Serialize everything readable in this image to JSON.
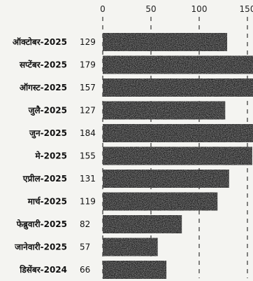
{
  "chart_data": {
    "type": "bar",
    "orientation": "horizontal",
    "title": "",
    "xlabel": "",
    "ylabel": "",
    "categories": [
      "ऑक्टोबर-2025",
      "सप्टेंबर-2025",
      "ऑगस्ट-2025",
      "जुलै-2025",
      "जुन-2025",
      "मे-2025",
      "एप्रील-2025",
      "मार्च-2025",
      "फेब्रुवारी-2025",
      "जानेवारी-2025",
      "डिसेंबर-2024"
    ],
    "values": [
      129,
      179,
      157,
      127,
      184,
      155,
      131,
      119,
      82,
      57,
      66
    ],
    "value_labels": [
      "129",
      "179",
      "157",
      "127",
      "184",
      "155",
      "131",
      "119",
      "82",
      "57",
      "66"
    ],
    "xticks": [
      0,
      50,
      100,
      150
    ],
    "xtick_labels": [
      "0",
      "50",
      "100",
      "150"
    ],
    "xlim": [
      0,
      155
    ],
    "grid": "vertical dashed",
    "bar_color": "#222222",
    "legend": "none"
  }
}
